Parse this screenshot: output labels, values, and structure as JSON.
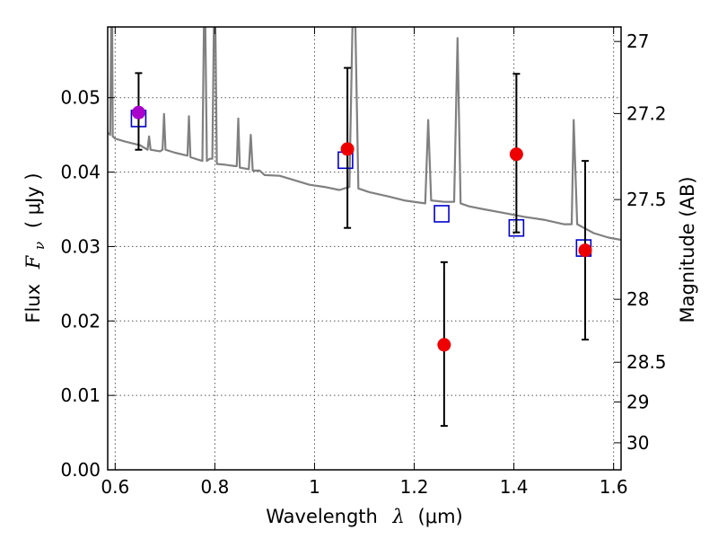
{
  "chart_data": {
    "type": "scatter",
    "xlabel": "Wavelength",
    "xlabel_symbol": "λ",
    "xlabel_unit": "(μm)",
    "ylabel": "Flux",
    "ylabel_symbol": "F",
    "ylabel_subscript": "ν",
    "ylabel_unit": "( μJy )",
    "y2label": "Magnitude (AB)",
    "xlim": [
      0.585,
      1.615
    ],
    "ylim": [
      0.0,
      0.0595
    ],
    "grid": true,
    "xticks": [
      {
        "value": 0.6,
        "label": "0.6"
      },
      {
        "value": 0.8,
        "label": "0.8"
      },
      {
        "value": 1.0,
        "label": "1"
      },
      {
        "value": 1.2,
        "label": "1.2"
      },
      {
        "value": 1.4,
        "label": "1.4"
      },
      {
        "value": 1.6,
        "label": "1.6"
      }
    ],
    "yticks": [
      {
        "value": 0.0,
        "label": "0.00"
      },
      {
        "value": 0.01,
        "label": "0.01"
      },
      {
        "value": 0.02,
        "label": "0.02"
      },
      {
        "value": 0.03,
        "label": "0.03"
      },
      {
        "value": 0.04,
        "label": "0.04"
      },
      {
        "value": 0.05,
        "label": "0.05"
      }
    ],
    "magnitude_ticks": [
      {
        "value": 27,
        "label": "27"
      },
      {
        "value": 27.2,
        "label": "27.2"
      },
      {
        "value": 27.5,
        "label": "27.5"
      },
      {
        "value": 28,
        "label": "28"
      },
      {
        "value": 28.5,
        "label": "28.5"
      },
      {
        "value": 29,
        "label": "29"
      },
      {
        "value": 30,
        "label": "30"
      }
    ],
    "magnitude_zero_point_ujy": 3631000000,
    "series": [
      {
        "name": "model-spectrum",
        "kind": "line",
        "color": "#808080",
        "points": [
          [
            0.585,
            0.0453
          ],
          [
            0.59,
            0.045
          ],
          [
            0.592,
            0.0595
          ],
          [
            0.594,
            0.0595
          ],
          [
            0.595,
            0.0448
          ],
          [
            0.6,
            0.0445
          ],
          [
            0.62,
            0.0441
          ],
          [
            0.65,
            0.0436
          ],
          [
            0.665,
            0.043
          ],
          [
            0.668,
            0.0448
          ],
          [
            0.671,
            0.043
          ],
          [
            0.69,
            0.0428
          ],
          [
            0.695,
            0.043
          ],
          [
            0.698,
            0.0478
          ],
          [
            0.701,
            0.043
          ],
          [
            0.72,
            0.0426
          ],
          [
            0.745,
            0.0422
          ],
          [
            0.748,
            0.0475
          ],
          [
            0.751,
            0.042
          ],
          [
            0.77,
            0.0416
          ],
          [
            0.775,
            0.0415
          ],
          [
            0.778,
            0.0595
          ],
          [
            0.781,
            0.0595
          ],
          [
            0.784,
            0.0415
          ],
          [
            0.79,
            0.0418
          ],
          [
            0.795,
            0.0418
          ],
          [
            0.798,
            0.0595
          ],
          [
            0.801,
            0.0595
          ],
          [
            0.804,
            0.0411
          ],
          [
            0.82,
            0.041
          ],
          [
            0.84,
            0.0408
          ],
          [
            0.844,
            0.0408
          ],
          [
            0.847,
            0.0472
          ],
          [
            0.85,
            0.0406
          ],
          [
            0.868,
            0.0404
          ],
          [
            0.872,
            0.045
          ],
          [
            0.876,
            0.0402
          ],
          [
            0.89,
            0.0402
          ],
          [
            0.9,
            0.0396
          ],
          [
            0.93,
            0.0395
          ],
          [
            0.96,
            0.0389
          ],
          [
            0.99,
            0.0383
          ],
          [
            1.02,
            0.038
          ],
          [
            1.05,
            0.0376
          ],
          [
            1.07,
            0.038
          ],
          [
            1.076,
            0.0595
          ],
          [
            1.082,
            0.0595
          ],
          [
            1.088,
            0.0378
          ],
          [
            1.11,
            0.0373
          ],
          [
            1.15,
            0.0367
          ],
          [
            1.18,
            0.0362
          ],
          [
            1.21,
            0.0359
          ],
          [
            1.222,
            0.0358
          ],
          [
            1.228,
            0.047
          ],
          [
            1.234,
            0.0362
          ],
          [
            1.26,
            0.036
          ],
          [
            1.28,
            0.036
          ],
          [
            1.287,
            0.058
          ],
          [
            1.293,
            0.0358
          ],
          [
            1.31,
            0.0354
          ],
          [
            1.34,
            0.035
          ],
          [
            1.38,
            0.0345
          ],
          [
            1.42,
            0.034
          ],
          [
            1.46,
            0.0336
          ],
          [
            1.5,
            0.033
          ],
          [
            1.516,
            0.033
          ],
          [
            1.52,
            0.047
          ],
          [
            1.527,
            0.033
          ],
          [
            1.56,
            0.0318
          ],
          [
            1.59,
            0.0312
          ],
          [
            1.615,
            0.0309
          ]
        ]
      },
      {
        "name": "model-photometry",
        "kind": "open-square",
        "color": "#0000cc",
        "points": [
          [
            0.647,
            0.0472
          ],
          [
            1.062,
            0.0416
          ],
          [
            1.255,
            0.0344
          ],
          [
            1.405,
            0.0325
          ],
          [
            1.54,
            0.0298
          ]
        ]
      },
      {
        "name": "observed-photometry",
        "kind": "filled-circle-errorbar",
        "color": "#ee0000",
        "highlight_color": "#aa00cc",
        "points": [
          {
            "x": 0.647,
            "y": 0.048,
            "err_low": 0.005,
            "err_high": 0.0053,
            "highlight": true
          },
          {
            "x": 1.066,
            "y": 0.0431,
            "err_low": 0.0106,
            "err_high": 0.0109
          },
          {
            "x": 1.26,
            "y": 0.0168,
            "err_low": 0.0109,
            "err_high": 0.0111
          },
          {
            "x": 1.405,
            "y": 0.0424,
            "err_low": 0.0105,
            "err_high": 0.0108
          },
          {
            "x": 1.543,
            "y": 0.0295,
            "err_low": 0.012,
            "err_high": 0.012
          }
        ]
      }
    ]
  }
}
